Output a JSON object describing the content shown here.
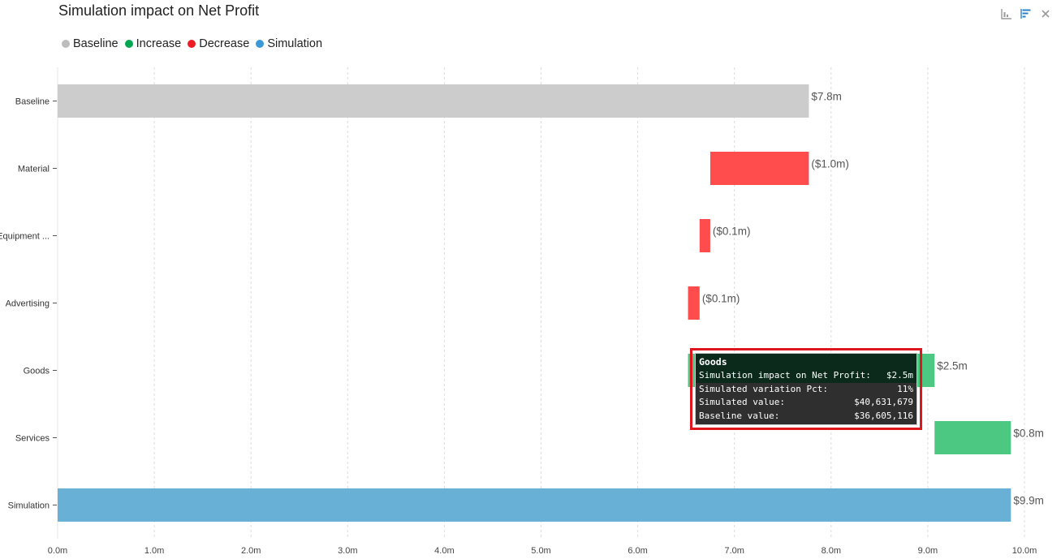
{
  "title": "Simulation impact on Net Profit",
  "toolbar": {
    "icons": [
      "chart-type-icon",
      "sort-icon",
      "close-icon"
    ]
  },
  "legend": [
    {
      "label": "Baseline",
      "color": "#bdbdbd"
    },
    {
      "label": "Increase",
      "color": "#00a651"
    },
    {
      "label": "Decrease",
      "color": "#ed1c24"
    },
    {
      "label": "Simulation",
      "color": "#3b9ad6"
    }
  ],
  "chart_data": {
    "type": "bar",
    "subtype": "horizontal waterfall",
    "title": "Simulation impact on Net Profit",
    "categories": [
      "Baseline",
      "Material",
      "Equipment ...",
      "Advertising",
      "Goods",
      "Services",
      "Simulation"
    ],
    "bars": [
      {
        "category": "Baseline",
        "kind": "Baseline",
        "start": 0,
        "end": 7.77,
        "label": "$7.8m"
      },
      {
        "category": "Material",
        "kind": "Decrease",
        "start": 6.75,
        "end": 7.77,
        "label": "($1.0m)"
      },
      {
        "category": "Equipment ...",
        "kind": "Decrease",
        "start": 6.64,
        "end": 6.75,
        "label": "($0.1m)"
      },
      {
        "category": "Advertising",
        "kind": "Decrease",
        "start": 6.52,
        "end": 6.64,
        "label": "($0.1m)"
      },
      {
        "category": "Goods",
        "kind": "Increase",
        "start": 6.52,
        "end": 9.07,
        "label": "$2.5m"
      },
      {
        "category": "Services",
        "kind": "Increase",
        "start": 9.07,
        "end": 9.86,
        "label": "$0.8m"
      },
      {
        "category": "Simulation",
        "kind": "Simulation",
        "start": 0,
        "end": 9.86,
        "label": "$9.9m"
      }
    ],
    "x_ticks": [
      "0.0m",
      "1.0m",
      "2.0m",
      "3.0m",
      "4.0m",
      "5.0m",
      "6.0m",
      "7.0m",
      "8.0m",
      "9.0m",
      "10.0m"
    ],
    "xlim": [
      0,
      10
    ],
    "grid": true,
    "legend_position": "top-left",
    "colors": {
      "Baseline": "#cccccc",
      "Increase": "#4cc882",
      "Decrease": "#ff4d4d",
      "Simulation": "#68b0d6"
    }
  },
  "tooltip": {
    "header": "Goods",
    "rows": [
      {
        "label": "Simulation impact on Net Profit:",
        "value": "$2.5m"
      },
      {
        "label": "Simulated variation Pct:",
        "value": "11%"
      },
      {
        "label": "Simulated value:",
        "value": "$40,631,679"
      },
      {
        "label": "Baseline value:",
        "value": "$36,605,116"
      }
    ]
  }
}
